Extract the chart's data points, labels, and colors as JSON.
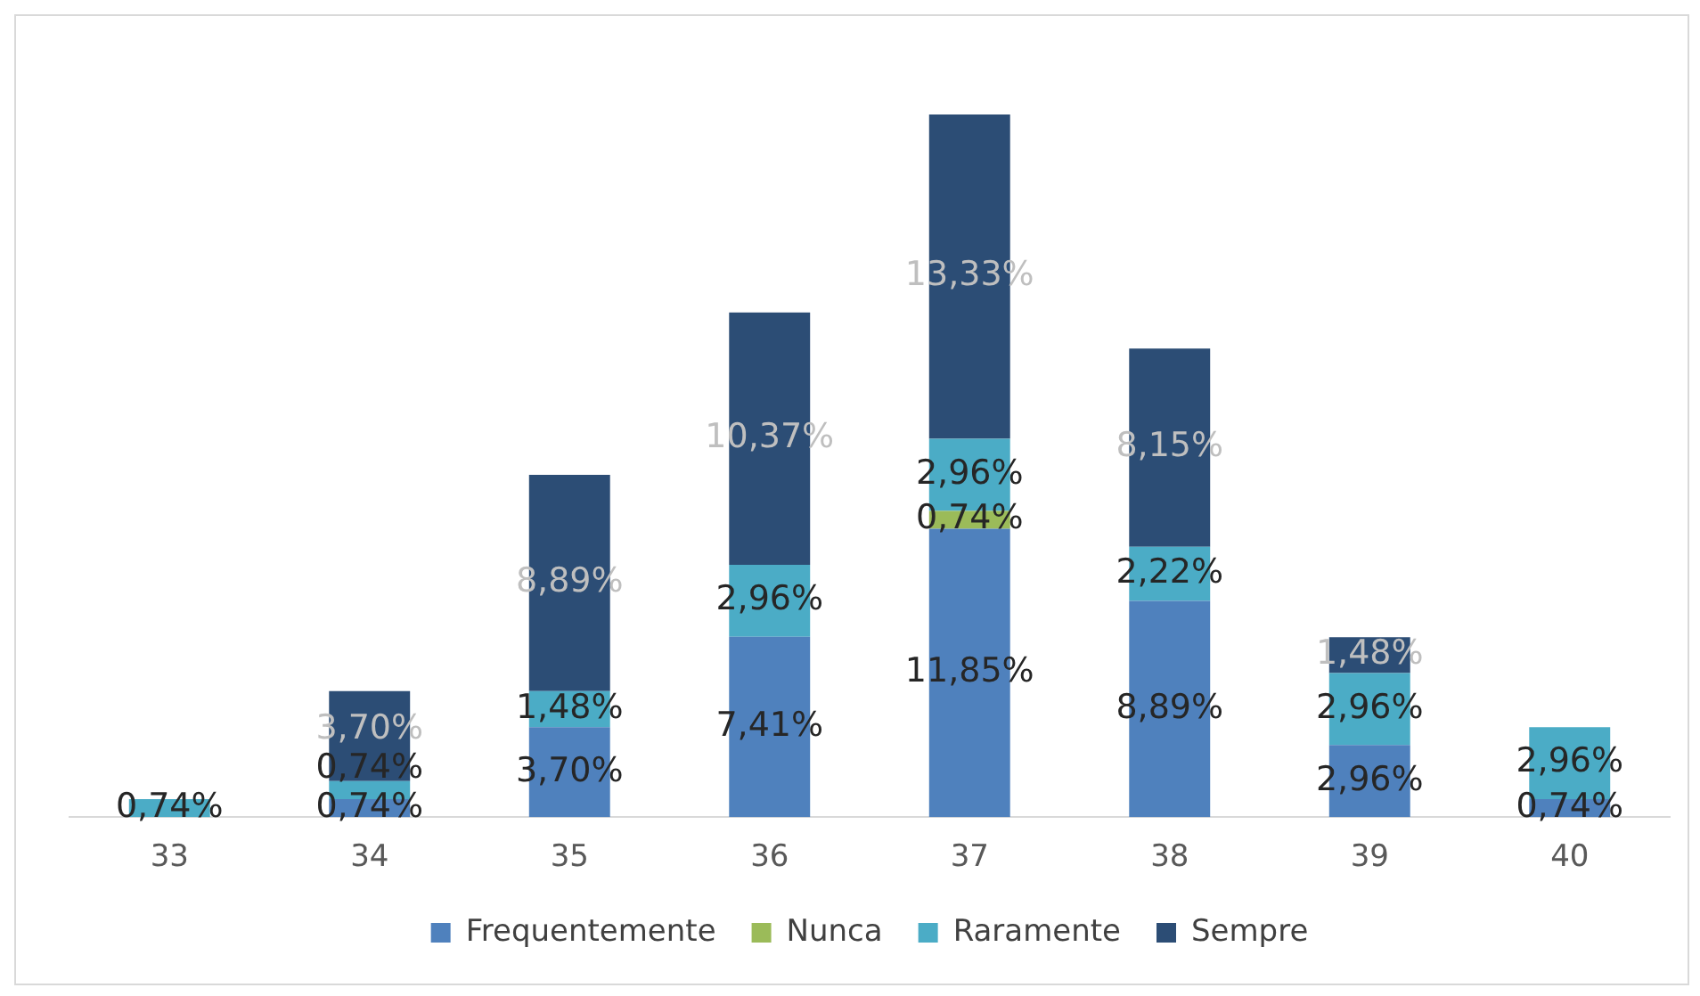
{
  "chart_data": {
    "type": "bar",
    "stacked": true,
    "categories": [
      "33",
      "34",
      "35",
      "36",
      "37",
      "38",
      "39",
      "40"
    ],
    "legend": "bottom",
    "series": [
      {
        "name": "Frequentemente",
        "color": "#4f81bd",
        "values": [
          null,
          0.74,
          3.7,
          7.41,
          11.85,
          8.89,
          2.96,
          0.74
        ],
        "value_labels": [
          null,
          "0,74%",
          "3,70%",
          "7,41%",
          "11,85%",
          "8,89%",
          "2,96%",
          "0,74%"
        ]
      },
      {
        "name": "Nunca",
        "color": "#9bbb59",
        "values": [
          null,
          null,
          null,
          null,
          0.74,
          null,
          null,
          null
        ],
        "value_labels": [
          null,
          null,
          null,
          null,
          "0,74%",
          null,
          null,
          null
        ]
      },
      {
        "name": "Raramente",
        "color": "#4bacc6",
        "values": [
          0.74,
          0.74,
          1.48,
          2.96,
          2.96,
          2.22,
          2.96,
          2.96
        ],
        "value_labels": [
          "0,74%",
          "0,74%",
          "1,48%",
          "2,96%",
          "2,96%",
          "2,22%",
          "2,96%",
          "2,96%"
        ]
      },
      {
        "name": "Sempre",
        "color": "#2c4d75",
        "values": [
          null,
          3.7,
          8.89,
          10.37,
          13.33,
          8.15,
          1.48,
          null
        ],
        "value_labels": [
          null,
          "3,70%",
          "8,89%",
          "10,37%",
          "13,33%",
          "8,15%",
          "1,48%",
          null
        ]
      }
    ]
  }
}
